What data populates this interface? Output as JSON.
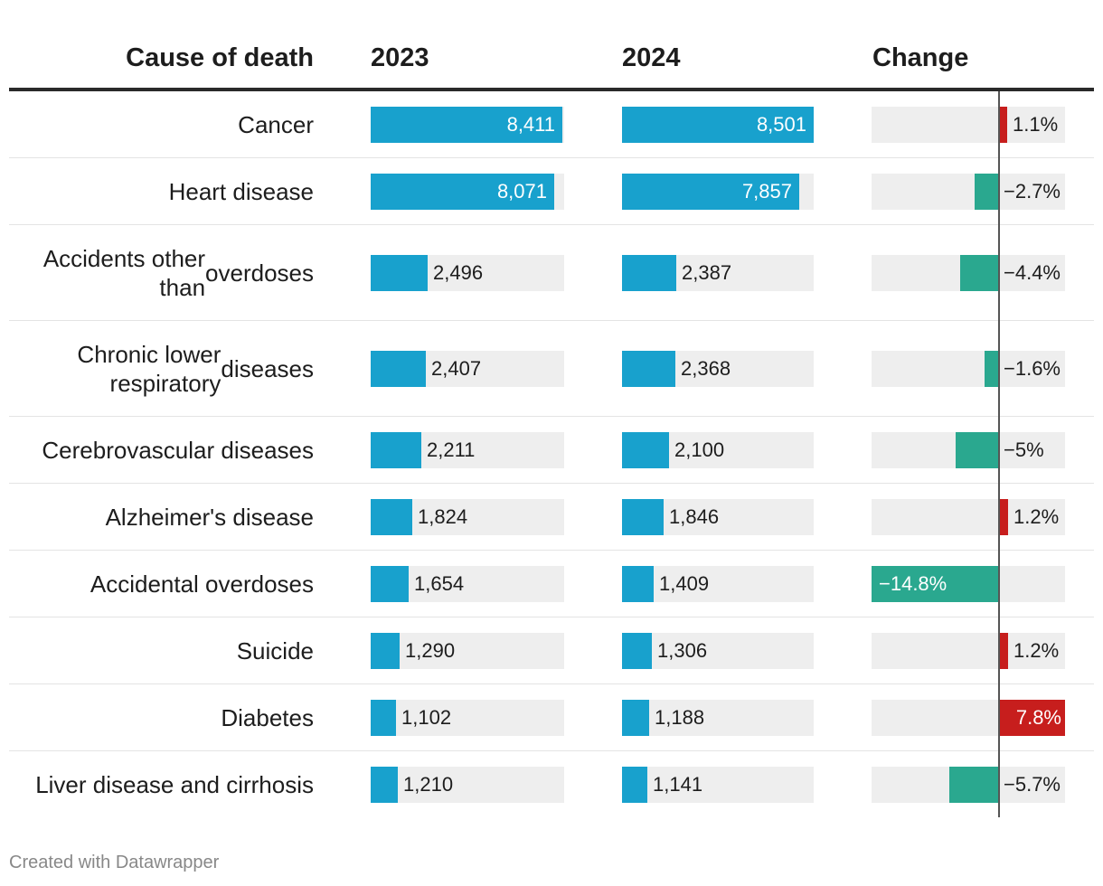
{
  "header": {
    "cause": "Cause of death",
    "year_a": "2023",
    "year_b": "2024",
    "change": "Change"
  },
  "footer": "Created with Datawrapper",
  "colors": {
    "bar": "#18a1cd",
    "increase": "#c71e1d",
    "decrease": "#2aa88f",
    "track": "#eeeeee"
  },
  "chart_data": {
    "type": "table",
    "columns": [
      "Cause of death",
      "2023",
      "2024",
      "Change"
    ],
    "bar_max": 8501,
    "change_range": [
      -14.8,
      7.8
    ],
    "rows": [
      {
        "cause": [
          "Cancer"
        ],
        "v2023": 8411,
        "v2023_label": "8,411",
        "v2024": 8501,
        "v2024_label": "8,501",
        "change": 1.1,
        "change_label": "1.1%"
      },
      {
        "cause": [
          "Heart disease"
        ],
        "v2023": 8071,
        "v2023_label": "8,071",
        "v2024": 7857,
        "v2024_label": "7,857",
        "change": -2.7,
        "change_label": "−2.7%"
      },
      {
        "cause": [
          "Accidents other than",
          "overdoses"
        ],
        "v2023": 2496,
        "v2023_label": "2,496",
        "v2024": 2387,
        "v2024_label": "2,387",
        "change": -4.4,
        "change_label": "−4.4%"
      },
      {
        "cause": [
          "Chronic lower respiratory",
          "diseases"
        ],
        "v2023": 2407,
        "v2023_label": "2,407",
        "v2024": 2368,
        "v2024_label": "2,368",
        "change": -1.6,
        "change_label": "−1.6%"
      },
      {
        "cause": [
          "Cerebrovascular diseases"
        ],
        "v2023": 2211,
        "v2023_label": "2,211",
        "v2024": 2100,
        "v2024_label": "2,100",
        "change": -5,
        "change_label": "−5%"
      },
      {
        "cause": [
          "Alzheimer's disease"
        ],
        "v2023": 1824,
        "v2023_label": "1,824",
        "v2024": 1846,
        "v2024_label": "1,846",
        "change": 1.2,
        "change_label": "1.2%"
      },
      {
        "cause": [
          "Accidental overdoses"
        ],
        "v2023": 1654,
        "v2023_label": "1,654",
        "v2024": 1409,
        "v2024_label": "1,409",
        "change": -14.8,
        "change_label": "−14.8%"
      },
      {
        "cause": [
          "Suicide"
        ],
        "v2023": 1290,
        "v2023_label": "1,290",
        "v2024": 1306,
        "v2024_label": "1,306",
        "change": 1.2,
        "change_label": "1.2%"
      },
      {
        "cause": [
          "Diabetes"
        ],
        "v2023": 1102,
        "v2023_label": "1,102",
        "v2024": 1188,
        "v2024_label": "1,188",
        "change": 7.8,
        "change_label": "7.8%"
      },
      {
        "cause": [
          "Liver disease and cirrhosis"
        ],
        "v2023": 1210,
        "v2023_label": "1,210",
        "v2024": 1141,
        "v2024_label": "1,141",
        "change": -5.7,
        "change_label": "−5.7%"
      }
    ]
  }
}
